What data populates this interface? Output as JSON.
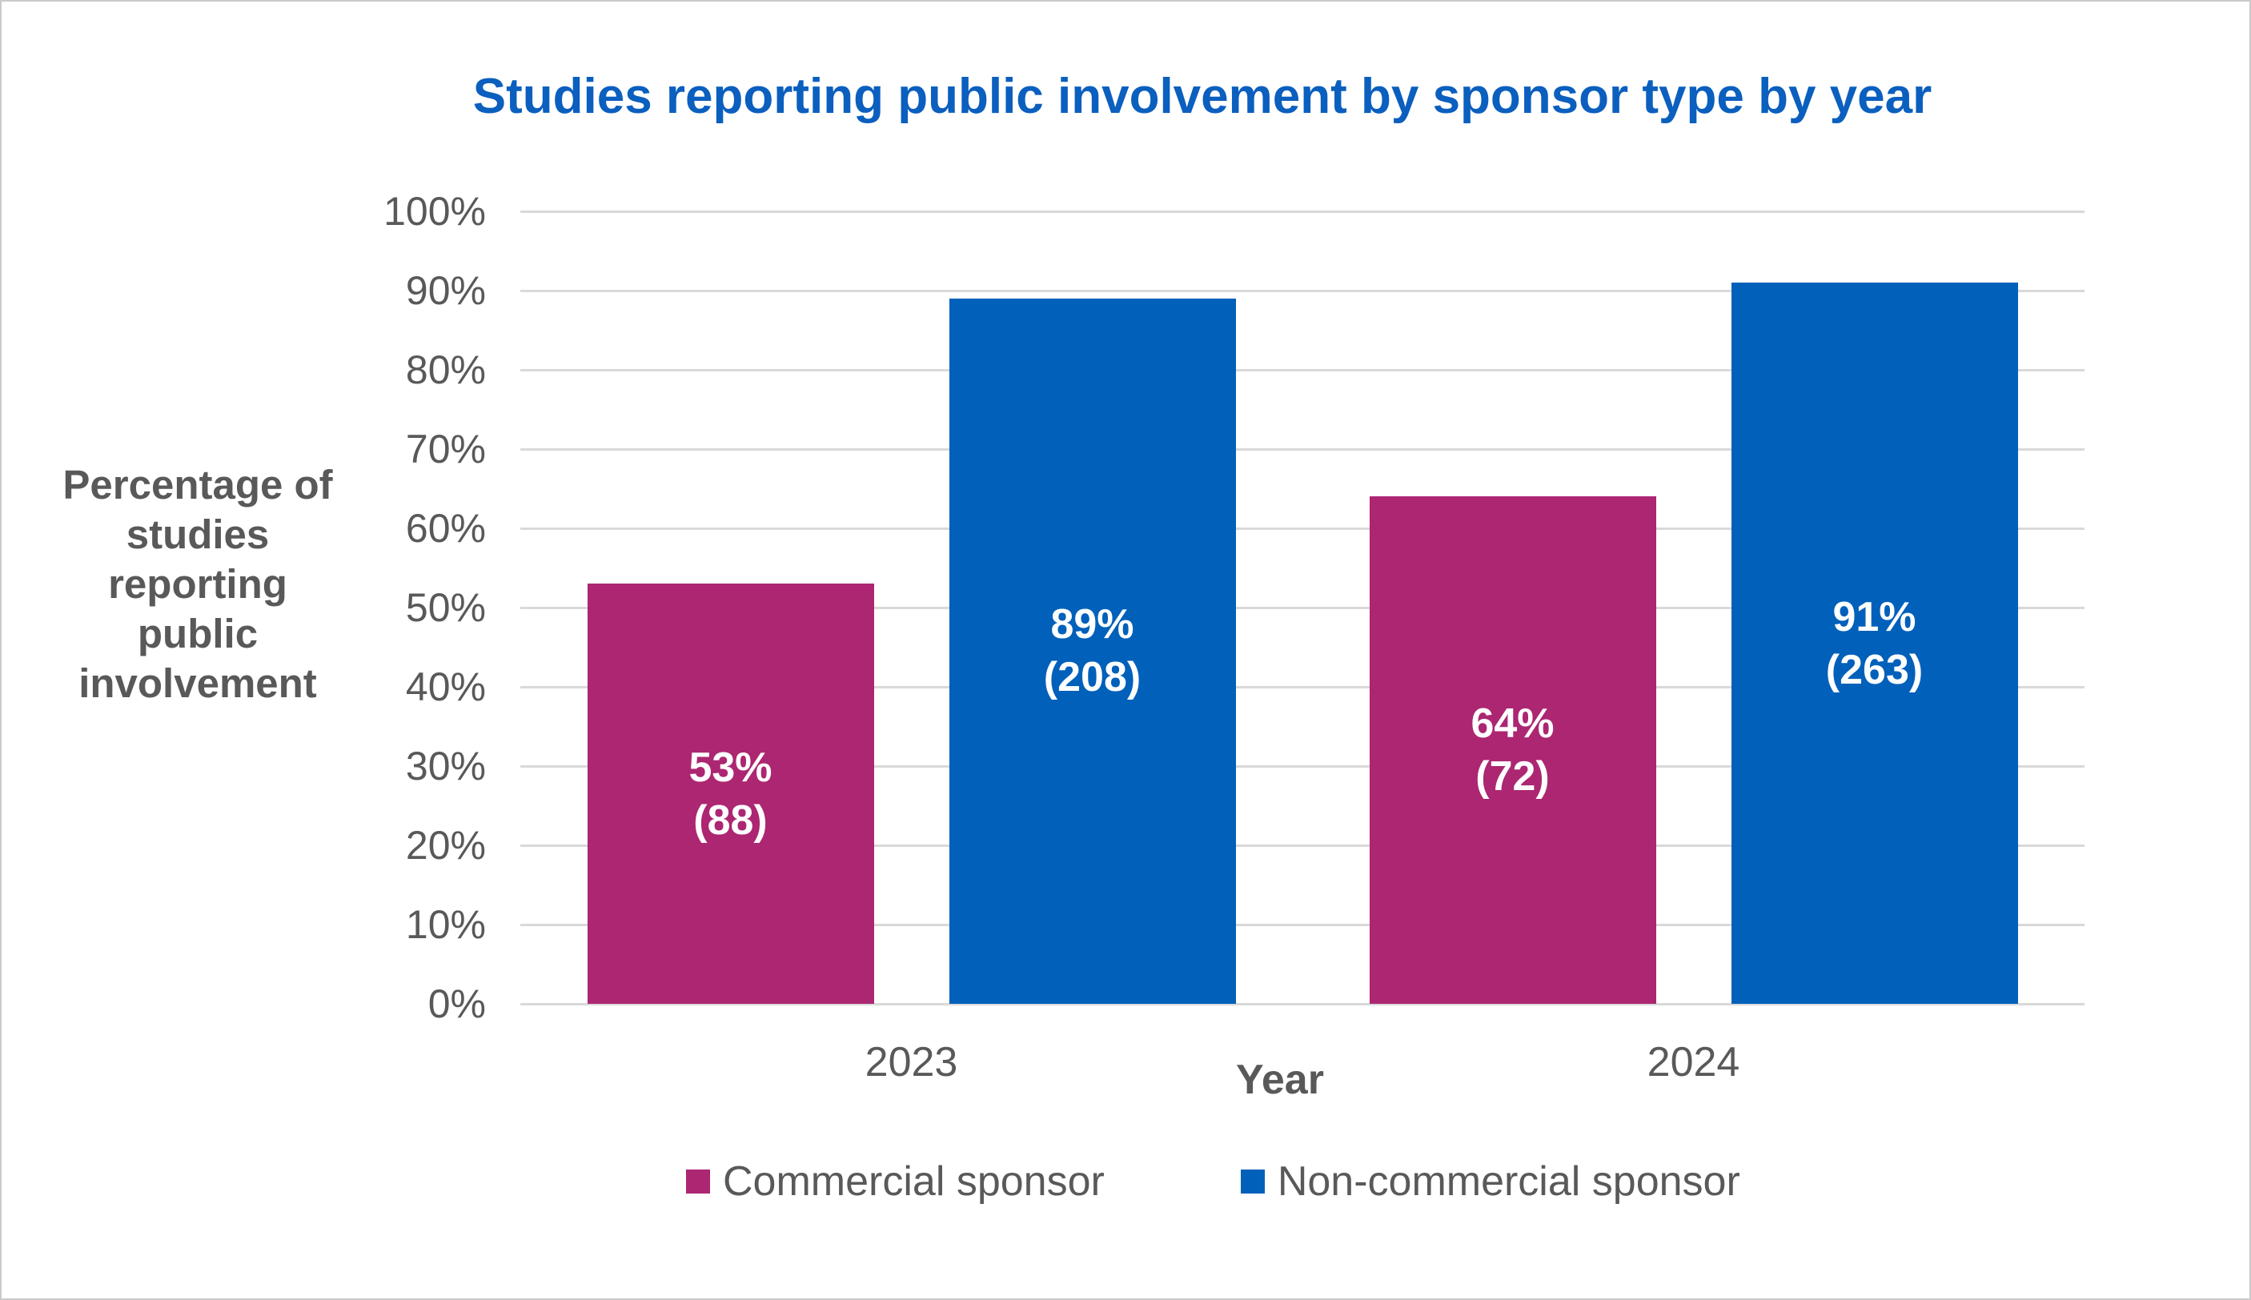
{
  "chart_data": {
    "type": "bar",
    "title": "Studies reporting public involvement by sponsor type by year",
    "categories": [
      "2023",
      "2024"
    ],
    "series": [
      {
        "name": "Commercial sponsor",
        "color": "#AC2672",
        "values": [
          53,
          64
        ],
        "counts": [
          88,
          72
        ],
        "bar_labels": [
          [
            "53%",
            "(88)"
          ],
          [
            "64%",
            "(72)"
          ]
        ]
      },
      {
        "name": "Non-commercial sponsor",
        "color": "#0060BA",
        "values": [
          89,
          91
        ],
        "counts": [
          208,
          263
        ],
        "bar_labels": [
          [
            "89%",
            "(208)"
          ],
          [
            "91%",
            "(263)"
          ]
        ]
      }
    ],
    "xlabel": "Year",
    "ylabel": "Percentage of studies reporting public involvement",
    "ylabel_display": "Percentage of\nstudies\nreporting\npublic\ninvolvement",
    "ylim": [
      0,
      100
    ],
    "yticks": [
      "0%",
      "10%",
      "20%",
      "30%",
      "40%",
      "50%",
      "60%",
      "70%",
      "80%",
      "90%",
      "100%"
    ],
    "grid": true,
    "legend_position": "bottom",
    "colors": {
      "title_text": "#0B5FBE",
      "axis_text": "#595959",
      "gridline": "#D9D9D9",
      "bar_label_text": "#FFFFFF",
      "background": "#FFFFFF",
      "canvas_border": "#CACACA"
    }
  }
}
